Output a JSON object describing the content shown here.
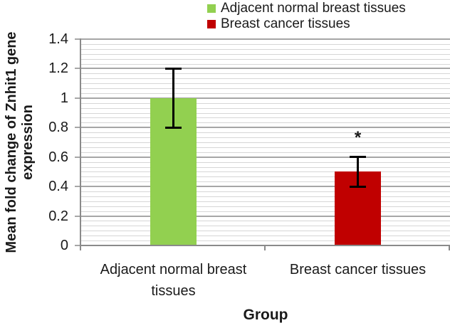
{
  "colors": {
    "minor_grid": "#D6D6D6",
    "major_grid": "#A6A6A6",
    "axis": "#8A8A8A",
    "error": "#000000",
    "text": "#1A1A1A"
  },
  "legend": {
    "items": [
      {
        "label": "Adjacent normal breast tissues",
        "color": "#92D050"
      },
      {
        "label": "Breast cancer tissues",
        "color": "#C00000"
      }
    ]
  },
  "chart_data": {
    "type": "bar",
    "title": "",
    "xlabel": "Group",
    "ylabel": "Mean fold change of Znhit1 gene expression",
    "ylabel_lines": [
      "Mean fold change of Znhit1 gene",
      "expression"
    ],
    "categories": [
      "Adjacent normal breast tissues",
      "Breast cancer tissues"
    ],
    "category_label_lines": [
      [
        "Adjacent normal breast",
        "tissues"
      ],
      [
        "Breast cancer tissues"
      ]
    ],
    "values": [
      1.0,
      0.5
    ],
    "bar_colors": [
      "#92D050",
      "#C00000"
    ],
    "error_bars": [
      {
        "plus": 0.2,
        "minus": 0.2
      },
      {
        "plus": 0.1,
        "minus": 0.1
      }
    ],
    "annotations": [
      {
        "text": "*",
        "category_index": 1,
        "y": 0.73
      }
    ],
    "ylim": [
      0,
      1.4
    ],
    "y_major_ticks": [
      0,
      0.2,
      0.4,
      0.6,
      0.8,
      1.0,
      1.2,
      1.4
    ],
    "y_tick_labels": [
      "0",
      "0.2",
      "0.4",
      "0.6",
      "0.8",
      "1",
      "1.2",
      "1.4"
    ],
    "minor_per_major": 6,
    "grid": true,
    "legend_position": "top-right"
  }
}
